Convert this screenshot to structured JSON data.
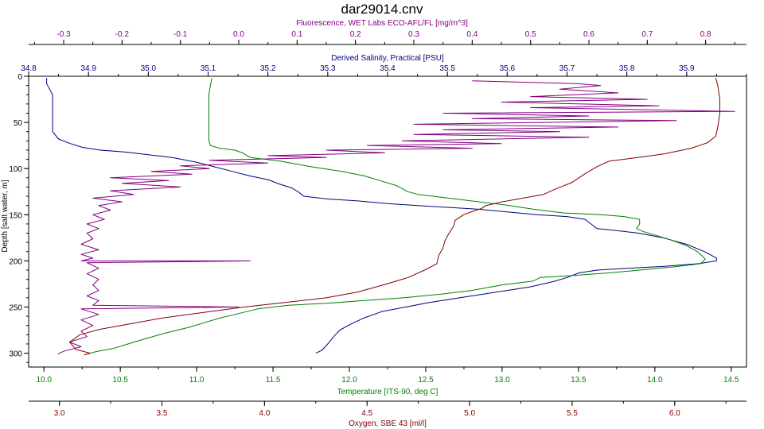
{
  "chart_data": {
    "type": "line",
    "title": "dar29014.cnv",
    "grid": false,
    "legend": "none",
    "y_axis": {
      "label": "Depth [salt water, m]",
      "range": [
        0,
        315
      ],
      "inverted": true,
      "ticks": [
        0,
        50,
        100,
        150,
        200,
        250,
        300
      ],
      "tick_labels": [
        "0",
        "50",
        "100",
        "150",
        "200",
        "250",
        "300"
      ]
    },
    "x_axes": [
      {
        "id": "fluorescence",
        "label": "Fluorescence, WET Labs ECO-AFL/FL [mg/m^3]",
        "position": "top-outer",
        "color": "#800080",
        "range": [
          -0.36,
          0.87
        ],
        "ticks": [
          -0.3,
          -0.2,
          -0.1,
          0.0,
          0.1,
          0.2,
          0.3,
          0.4,
          0.5,
          0.6,
          0.7,
          0.8
        ],
        "tick_labels": [
          "-0.3",
          "-0.2",
          "-0.1",
          "0.0",
          "0.1",
          "0.2",
          "0.3",
          "0.4",
          "0.5",
          "0.6",
          "0.7",
          "0.8"
        ]
      },
      {
        "id": "salinity",
        "label": "Derived Salinity, Practical [PSU]",
        "position": "top-inner",
        "color": "#000080",
        "range": [
          34.8,
          36.0
        ],
        "ticks": [
          34.8,
          34.9,
          35.0,
          35.1,
          35.2,
          35.3,
          35.4,
          35.5,
          35.6,
          35.7,
          35.8,
          35.9
        ],
        "tick_labels": [
          "34.8",
          "34.9",
          "35.0",
          "35.1",
          "35.2",
          "35.3",
          "35.4",
          "35.5",
          "35.6",
          "35.7",
          "35.8",
          "35.9"
        ]
      },
      {
        "id": "temperature",
        "label": "Temperature [ITS-90, deg C]",
        "position": "bottom-inner",
        "color": "#008000",
        "range": [
          9.9,
          14.6
        ],
        "ticks": [
          10.0,
          10.5,
          11.0,
          11.5,
          12.0,
          12.5,
          13.0,
          13.5,
          14.0,
          14.5
        ],
        "tick_labels": [
          "10.0",
          "10.5",
          "11.0",
          "11.5",
          "12.0",
          "12.5",
          "13.0",
          "13.5",
          "14.0",
          "14.5"
        ]
      },
      {
        "id": "oxygen",
        "label": "Oxygen, SBE 43 [ml/l]",
        "position": "bottom-outer",
        "color": "#800000",
        "range": [
          2.85,
          6.35
        ],
        "ticks": [
          3.0,
          3.5,
          4.0,
          4.5,
          5.0,
          5.5,
          6.0
        ],
        "tick_labels": [
          "3.0",
          "3.5",
          "4.0",
          "4.5",
          "5.0",
          "5.5",
          "6.0"
        ]
      }
    ],
    "series": [
      {
        "id": "salinity",
        "axis": "salinity",
        "color": "#000080",
        "points": [
          [
            34.83,
            2
          ],
          [
            34.83,
            8
          ],
          [
            34.84,
            20
          ],
          [
            34.84,
            40
          ],
          [
            34.84,
            60
          ],
          [
            34.85,
            68
          ],
          [
            34.87,
            73
          ],
          [
            34.89,
            77
          ],
          [
            34.92,
            80
          ],
          [
            34.96,
            82
          ],
          [
            35.0,
            85
          ],
          [
            35.04,
            88
          ],
          [
            35.08,
            93
          ],
          [
            35.11,
            98
          ],
          [
            35.14,
            103
          ],
          [
            35.17,
            108
          ],
          [
            35.2,
            112
          ],
          [
            35.22,
            117
          ],
          [
            35.24,
            121
          ],
          [
            35.25,
            125
          ],
          [
            35.26,
            130
          ],
          [
            35.3,
            133
          ],
          [
            35.35,
            135
          ],
          [
            35.4,
            138
          ],
          [
            35.45,
            140
          ],
          [
            35.5,
            142
          ],
          [
            35.55,
            144
          ],
          [
            35.6,
            147
          ],
          [
            35.65,
            150
          ],
          [
            35.7,
            152
          ],
          [
            35.73,
            155
          ],
          [
            35.74,
            160
          ],
          [
            35.75,
            165
          ],
          [
            35.78,
            167
          ],
          [
            35.82,
            170
          ],
          [
            35.86,
            175
          ],
          [
            35.9,
            182
          ],
          [
            35.93,
            190
          ],
          [
            35.95,
            197
          ],
          [
            35.95,
            200
          ],
          [
            35.92,
            203
          ],
          [
            35.86,
            206
          ],
          [
            35.8,
            208
          ],
          [
            35.75,
            210
          ],
          [
            35.72,
            213
          ],
          [
            35.7,
            218
          ],
          [
            35.68,
            222
          ],
          [
            35.64,
            228
          ],
          [
            35.6,
            232
          ],
          [
            35.56,
            236
          ],
          [
            35.52,
            240
          ],
          [
            35.47,
            245
          ],
          [
            35.43,
            250
          ],
          [
            35.39,
            255
          ],
          [
            35.36,
            262
          ],
          [
            35.34,
            268
          ],
          [
            35.32,
            275
          ],
          [
            35.31,
            282
          ],
          [
            35.3,
            290
          ],
          [
            35.29,
            297
          ],
          [
            35.28,
            300
          ]
        ]
      },
      {
        "id": "fluorescence",
        "axis": "fluorescence",
        "color": "#800080",
        "points": [
          [
            0.4,
            5
          ],
          [
            0.58,
            8
          ],
          [
            0.62,
            10
          ],
          [
            0.55,
            14
          ],
          [
            0.65,
            18
          ],
          [
            0.5,
            22
          ],
          [
            0.7,
            25
          ],
          [
            0.45,
            28
          ],
          [
            0.72,
            32
          ],
          [
            0.5,
            34
          ],
          [
            0.85,
            38
          ],
          [
            0.35,
            40
          ],
          [
            0.6,
            43
          ],
          [
            0.4,
            46
          ],
          [
            0.75,
            48
          ],
          [
            0.3,
            52
          ],
          [
            0.65,
            55
          ],
          [
            0.35,
            58
          ],
          [
            0.55,
            60
          ],
          [
            0.3,
            63
          ],
          [
            0.6,
            66
          ],
          [
            0.28,
            70
          ],
          [
            0.45,
            73
          ],
          [
            0.22,
            75
          ],
          [
            0.4,
            78
          ],
          [
            0.15,
            80
          ],
          [
            0.25,
            83
          ],
          [
            0.05,
            86
          ],
          [
            0.15,
            88
          ],
          [
            -0.05,
            91
          ],
          [
            0.05,
            94
          ],
          [
            -0.1,
            97
          ],
          [
            -0.05,
            100
          ],
          [
            -0.15,
            103
          ],
          [
            -0.08,
            106
          ],
          [
            -0.22,
            110
          ],
          [
            -0.12,
            113
          ],
          [
            -0.2,
            116
          ],
          [
            -0.1,
            120
          ],
          [
            -0.22,
            124
          ],
          [
            -0.18,
            128
          ],
          [
            -0.25,
            132
          ],
          [
            -0.2,
            136
          ],
          [
            -0.24,
            140
          ],
          [
            -0.22,
            145
          ],
          [
            -0.25,
            150
          ],
          [
            -0.23,
            155
          ],
          [
            -0.26,
            160
          ],
          [
            -0.24,
            165
          ],
          [
            -0.26,
            170
          ],
          [
            -0.25,
            176
          ],
          [
            -0.27,
            182
          ],
          [
            -0.24,
            188
          ],
          [
            -0.27,
            193
          ],
          [
            -0.25,
            197
          ],
          [
            -0.27,
            200
          ],
          [
            0.02,
            200
          ],
          [
            -0.26,
            202
          ],
          [
            -0.24,
            208
          ],
          [
            -0.26,
            214
          ],
          [
            -0.24,
            220
          ],
          [
            -0.25,
            226
          ],
          [
            -0.24,
            232
          ],
          [
            -0.26,
            238
          ],
          [
            -0.24,
            243
          ],
          [
            -0.25,
            248
          ],
          [
            0.0,
            250
          ],
          [
            -0.27,
            252
          ],
          [
            -0.24,
            258
          ],
          [
            -0.27,
            264
          ],
          [
            -0.25,
            270
          ],
          [
            -0.27,
            276
          ],
          [
            -0.26,
            282
          ],
          [
            -0.29,
            288
          ],
          [
            -0.27,
            293
          ],
          [
            -0.3,
            298
          ],
          [
            -0.31,
            301
          ]
        ]
      },
      {
        "id": "temperature",
        "axis": "temperature",
        "color": "#008000",
        "points": [
          [
            11.1,
            2
          ],
          [
            11.09,
            10
          ],
          [
            11.08,
            20
          ],
          [
            11.08,
            40
          ],
          [
            11.08,
            60
          ],
          [
            11.08,
            70
          ],
          [
            11.09,
            75
          ],
          [
            11.15,
            78
          ],
          [
            11.25,
            80
          ],
          [
            11.3,
            83
          ],
          [
            11.35,
            88
          ],
          [
            11.55,
            92
          ],
          [
            11.75,
            98
          ],
          [
            11.95,
            103
          ],
          [
            12.1,
            108
          ],
          [
            12.2,
            113
          ],
          [
            12.3,
            118
          ],
          [
            12.35,
            122
          ],
          [
            12.38,
            125
          ],
          [
            12.45,
            128
          ],
          [
            12.6,
            131
          ],
          [
            12.75,
            134
          ],
          [
            12.9,
            137
          ],
          [
            13.05,
            140
          ],
          [
            13.2,
            144
          ],
          [
            13.4,
            148
          ],
          [
            13.65,
            150
          ],
          [
            13.8,
            152
          ],
          [
            13.9,
            155
          ],
          [
            13.9,
            160
          ],
          [
            13.88,
            165
          ],
          [
            13.92,
            168
          ],
          [
            14.0,
            172
          ],
          [
            14.1,
            177
          ],
          [
            14.2,
            183
          ],
          [
            14.28,
            190
          ],
          [
            14.33,
            198
          ],
          [
            14.3,
            203
          ],
          [
            14.15,
            206
          ],
          [
            13.9,
            210
          ],
          [
            13.7,
            213
          ],
          [
            13.45,
            216
          ],
          [
            13.25,
            218
          ],
          [
            13.2,
            222
          ],
          [
            13.0,
            226
          ],
          [
            12.8,
            232
          ],
          [
            12.6,
            236
          ],
          [
            12.35,
            240
          ],
          [
            12.1,
            243
          ],
          [
            11.85,
            246
          ],
          [
            11.6,
            248
          ],
          [
            11.4,
            252
          ],
          [
            11.25,
            258
          ],
          [
            11.15,
            262
          ],
          [
            11.05,
            267
          ],
          [
            10.95,
            272
          ],
          [
            10.8,
            278
          ],
          [
            10.65,
            285
          ],
          [
            10.55,
            290
          ],
          [
            10.45,
            295
          ],
          [
            10.35,
            298
          ],
          [
            10.3,
            300
          ]
        ]
      },
      {
        "id": "oxygen",
        "axis": "oxygen",
        "color": "#800000",
        "points": [
          [
            6.2,
            2
          ],
          [
            6.21,
            10
          ],
          [
            6.22,
            25
          ],
          [
            6.22,
            40
          ],
          [
            6.21,
            55
          ],
          [
            6.2,
            65
          ],
          [
            6.16,
            72
          ],
          [
            6.08,
            78
          ],
          [
            5.95,
            84
          ],
          [
            5.82,
            88
          ],
          [
            5.68,
            92
          ],
          [
            5.62,
            98
          ],
          [
            5.56,
            106
          ],
          [
            5.5,
            115
          ],
          [
            5.42,
            122
          ],
          [
            5.36,
            128
          ],
          [
            5.26,
            132
          ],
          [
            5.16,
            136
          ],
          [
            5.08,
            140
          ],
          [
            5.06,
            143
          ],
          [
            5.02,
            146
          ],
          [
            4.97,
            150
          ],
          [
            4.93,
            156
          ],
          [
            4.92,
            163
          ],
          [
            4.9,
            170
          ],
          [
            4.88,
            178
          ],
          [
            4.87,
            186
          ],
          [
            4.85,
            194
          ],
          [
            4.84,
            203
          ],
          [
            4.78,
            210
          ],
          [
            4.7,
            218
          ],
          [
            4.58,
            226
          ],
          [
            4.45,
            234
          ],
          [
            4.3,
            240
          ],
          [
            4.1,
            245
          ],
          [
            3.9,
            250
          ],
          [
            3.7,
            256
          ],
          [
            3.5,
            262
          ],
          [
            3.35,
            268
          ],
          [
            3.2,
            274
          ],
          [
            3.1,
            280
          ],
          [
            3.05,
            288
          ],
          [
            3.08,
            296
          ],
          [
            3.15,
            300
          ],
          [
            3.12,
            302
          ]
        ]
      }
    ]
  }
}
